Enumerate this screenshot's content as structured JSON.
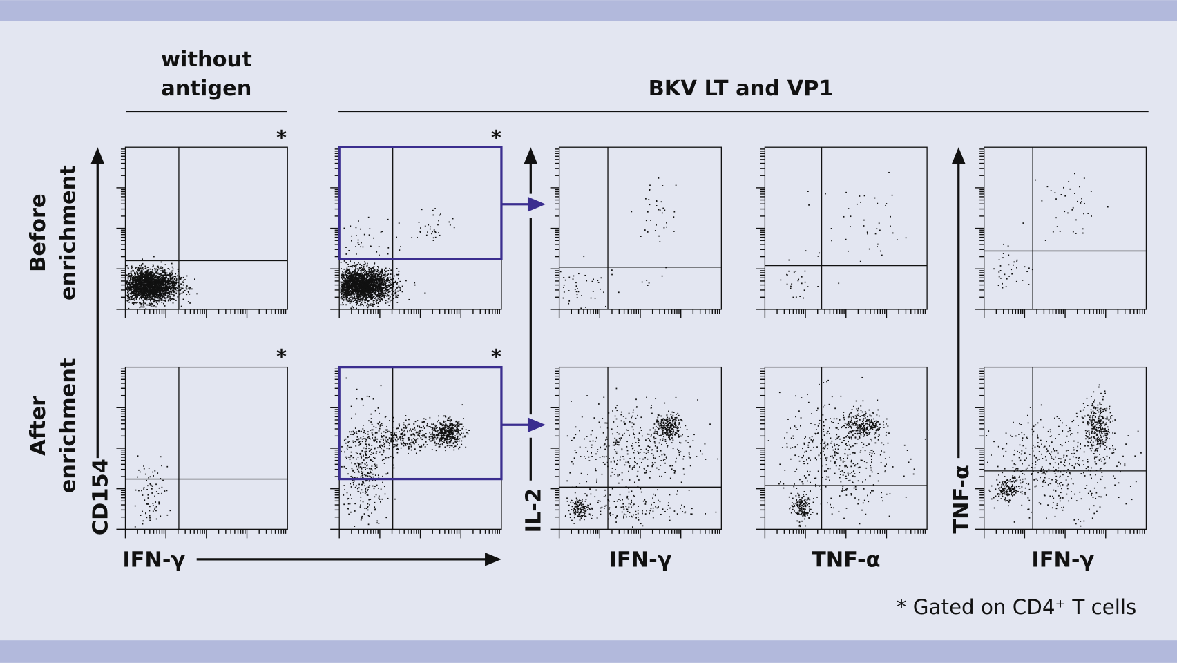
{
  "colors": {
    "background": "#e3e6f1",
    "band": "#b2b9dc",
    "gate": "#3b2e8f",
    "dots": "#111111"
  },
  "headers": {
    "without_antigen_line1": "without",
    "without_antigen_line2": "antigen",
    "bkv": "BKV LT and VP1"
  },
  "rows": {
    "before_line1": "Before",
    "before_line2": "enrichment",
    "after_line1": "After",
    "after_line2": "enrichment"
  },
  "axes": {
    "cd154": "CD154",
    "ifng_main": "IFN-γ",
    "il2": "IL-2",
    "tnfa_y": "TNF-α",
    "x_col3": "IFN-γ",
    "x_col4": "TNF-α",
    "x_col5": "IFN-γ"
  },
  "gate_marker": "*",
  "footnote": "* Gated on CD4⁺ T cells",
  "chart_data": [
    {
      "type": "scatter",
      "row": "Before enrichment",
      "column": "without antigen",
      "x": "IFN-γ",
      "y": "CD154",
      "xlim": [
        0,
        100
      ],
      "ylim": [
        0,
        100
      ],
      "quadrant": [
        33,
        30
      ],
      "gated_cd4": true,
      "clusters": [
        {
          "cx": 14,
          "cy": 15,
          "sx": 9,
          "sy": 5,
          "n": 2500
        }
      ]
    },
    {
      "type": "scatter",
      "row": "Before enrichment",
      "column": "BKV LT and VP1",
      "x": "IFN-γ",
      "y": "CD154",
      "xlim": [
        0,
        100
      ],
      "ylim": [
        0,
        100
      ],
      "quadrant": [
        33,
        31
      ],
      "gated_cd4": true,
      "gate": [
        0,
        31,
        100,
        100
      ],
      "clusters": [
        {
          "cx": 14,
          "cy": 15,
          "sx": 9,
          "sy": 5,
          "n": 2500
        },
        {
          "cx": 15,
          "cy": 42,
          "sx": 10,
          "sy": 9,
          "n": 50
        },
        {
          "cx": 58,
          "cy": 52,
          "sx": 7,
          "sy": 6,
          "n": 35
        }
      ]
    },
    {
      "type": "scatter",
      "row": "Before enrichment",
      "column": "IL-2 vs IFN-γ",
      "x": "IFN-γ",
      "y": "IL-2",
      "xlim": [
        0,
        100
      ],
      "ylim": [
        0,
        100
      ],
      "quadrant": [
        30,
        26
      ],
      "clusters": [
        {
          "cx": 12,
          "cy": 15,
          "sx": 7,
          "sy": 7,
          "n": 40
        },
        {
          "cx": 60,
          "cy": 60,
          "sx": 8,
          "sy": 10,
          "n": 35
        },
        {
          "cx": 45,
          "cy": 14,
          "sx": 14,
          "sy": 5,
          "n": 12
        }
      ]
    },
    {
      "type": "scatter",
      "row": "Before enrichment",
      "column": "IL-2 vs TNF-α",
      "x": "TNF-α",
      "y": "IL-2",
      "xlim": [
        0,
        100
      ],
      "ylim": [
        0,
        100
      ],
      "quadrant": [
        35,
        27
      ],
      "clusters": [
        {
          "cx": 20,
          "cy": 16,
          "sx": 5,
          "sy": 6,
          "n": 25
        },
        {
          "cx": 60,
          "cy": 50,
          "sx": 18,
          "sy": 14,
          "n": 45
        }
      ]
    },
    {
      "type": "scatter",
      "row": "Before enrichment",
      "column": "TNF-α vs IFN-γ",
      "x": "IFN-γ",
      "y": "TNF-α",
      "xlim": [
        0,
        100
      ],
      "ylim": [
        0,
        100
      ],
      "quadrant": [
        30,
        36
      ],
      "clusters": [
        {
          "cx": 15,
          "cy": 25,
          "sx": 7,
          "sy": 6,
          "n": 35
        },
        {
          "cx": 55,
          "cy": 65,
          "sx": 10,
          "sy": 12,
          "n": 40
        }
      ]
    },
    {
      "type": "scatter",
      "row": "After enrichment",
      "column": "without antigen",
      "x": "IFN-γ",
      "y": "CD154",
      "xlim": [
        0,
        100
      ],
      "ylim": [
        0,
        100
      ],
      "quadrant": [
        33,
        31
      ],
      "gated_cd4": true,
      "clusters": [
        {
          "cx": 14,
          "cy": 22,
          "sx": 6,
          "sy": 10,
          "n": 80
        }
      ]
    },
    {
      "type": "scatter",
      "row": "After enrichment",
      "column": "BKV LT and VP1",
      "x": "IFN-γ",
      "y": "CD154",
      "xlim": [
        0,
        100
      ],
      "ylim": [
        0,
        100
      ],
      "quadrant": [
        33,
        31
      ],
      "gated_cd4": true,
      "gate": [
        0,
        31,
        100,
        100
      ],
      "clusters": [
        {
          "cx": 15,
          "cy": 40,
          "sx": 7,
          "sy": 18,
          "n": 400
        },
        {
          "cx": 66,
          "cy": 60,
          "sx": 5,
          "sy": 4,
          "n": 400
        },
        {
          "cx": 42,
          "cy": 58,
          "sx": 12,
          "sy": 5,
          "n": 300
        }
      ]
    },
    {
      "type": "scatter",
      "row": "After enrichment",
      "column": "IL-2 vs IFN-γ",
      "x": "IFN-γ",
      "y": "IL-2",
      "xlim": [
        0,
        100
      ],
      "ylim": [
        0,
        100
      ],
      "quadrant": [
        30,
        26
      ],
      "clusters": [
        {
          "cx": 67,
          "cy": 63,
          "sx": 4,
          "sy": 4,
          "n": 250
        },
        {
          "cx": 45,
          "cy": 50,
          "sx": 20,
          "sy": 15,
          "n": 400
        },
        {
          "cx": 12,
          "cy": 13,
          "sx": 3,
          "sy": 3,
          "n": 120
        },
        {
          "cx": 40,
          "cy": 13,
          "sx": 20,
          "sy": 5,
          "n": 150
        }
      ]
    },
    {
      "type": "scatter",
      "row": "After enrichment",
      "column": "IL-2 vs TNF-α",
      "x": "TNF-α",
      "y": "IL-2",
      "xlim": [
        0,
        100
      ],
      "ylim": [
        0,
        100
      ],
      "quadrant": [
        35,
        27
      ],
      "clusters": [
        {
          "cx": 22,
          "cy": 14,
          "sx": 3,
          "sy": 4,
          "n": 150
        },
        {
          "cx": 60,
          "cy": 65,
          "sx": 6,
          "sy": 4,
          "n": 250
        },
        {
          "cx": 45,
          "cy": 45,
          "sx": 18,
          "sy": 18,
          "n": 450
        }
      ]
    },
    {
      "type": "scatter",
      "row": "After enrichment",
      "column": "TNF-α vs IFN-γ",
      "x": "IFN-γ",
      "y": "TNF-α",
      "xlim": [
        0,
        100
      ],
      "ylim": [
        0,
        100
      ],
      "quadrant": [
        30,
        36
      ],
      "clusters": [
        {
          "cx": 14,
          "cy": 25,
          "sx": 4,
          "sy": 3,
          "n": 150
        },
        {
          "cx": 70,
          "cy": 62,
          "sx": 4,
          "sy": 10,
          "n": 300
        },
        {
          "cx": 45,
          "cy": 40,
          "sx": 20,
          "sy": 15,
          "n": 450
        }
      ]
    }
  ]
}
